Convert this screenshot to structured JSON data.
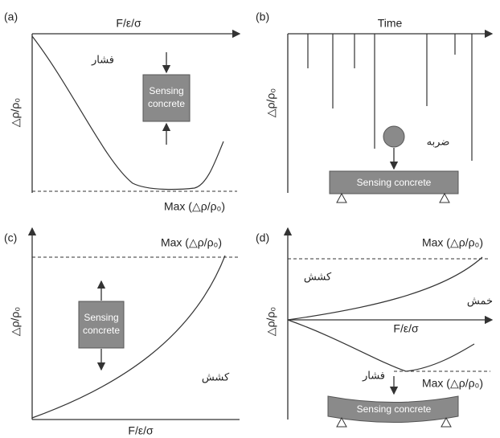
{
  "panels": [
    {
      "label": "(a)",
      "x_axis": "F/ε/σ",
      "y_axis": "△ρ/ρ₀",
      "annotation": "فشار",
      "box": [
        "Sensing",
        "concrete"
      ],
      "max_label": "Max (△ρ/ρ₀)"
    },
    {
      "label": "(b)",
      "x_axis": "Time",
      "y_axis": "△ρ/ρ₀",
      "annotation": "ضربه",
      "box": "Sensing concrete"
    },
    {
      "label": "(c)",
      "x_axis": "F/ε/σ",
      "y_axis": "△ρ/ρ₀",
      "annotation": "کشش",
      "box": [
        "Sensing",
        "concrete"
      ],
      "max_label": "Max (△ρ/ρ₀)"
    },
    {
      "label": "(d)",
      "x_axis": "F/ε/σ",
      "y_axis": "△ρ/ρ₀",
      "annotation_tension": "کشش",
      "annotation_bending": "خمش",
      "annotation_pressure": "فشار",
      "box": "Sensing concrete",
      "max_label_top": "Max (△ρ/ρ₀)",
      "max_label_bottom": "Max (△ρ/ρ₀)"
    }
  ]
}
